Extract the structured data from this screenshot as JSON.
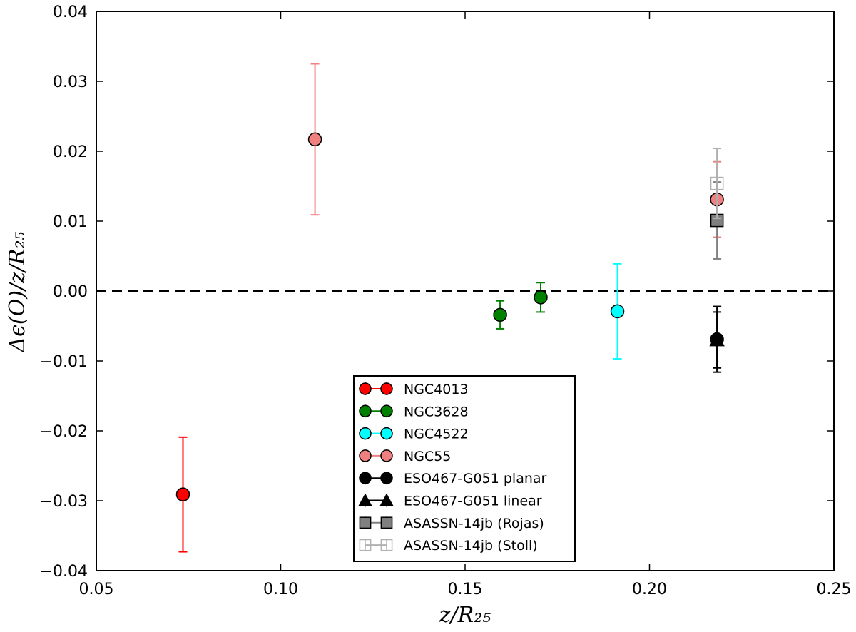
{
  "chart_data": {
    "type": "scatter",
    "title": "",
    "xlabel": "z/R₂₅",
    "ylabel": "Δϵ(O)/z/R₂₅",
    "xlim": [
      0.05,
      0.25
    ],
    "ylim": [
      -0.04,
      0.04
    ],
    "x_ticks": [
      {
        "value": 0.05,
        "label": "0.05"
      },
      {
        "value": 0.1,
        "label": "0.10"
      },
      {
        "value": 0.15,
        "label": "0.15"
      },
      {
        "value": 0.2,
        "label": "0.20"
      },
      {
        "value": 0.25,
        "label": "0.25"
      }
    ],
    "y_ticks": [
      {
        "value": 0.04,
        "label": "0.04"
      },
      {
        "value": 0.03,
        "label": "0.03"
      },
      {
        "value": 0.02,
        "label": "0.02"
      },
      {
        "value": 0.01,
        "label": "0.01"
      },
      {
        "value": 0.0,
        "label": "0.00"
      },
      {
        "value": -0.01,
        "label": "−0.01"
      },
      {
        "value": -0.02,
        "label": "−0.02"
      },
      {
        "value": -0.03,
        "label": "−0.03"
      },
      {
        "value": -0.04,
        "label": "−0.04"
      }
    ],
    "reference_line": {
      "y": 0.0,
      "style": "dashed",
      "color": "#000000"
    },
    "legend_position": "bottom-center",
    "series": [
      {
        "name": "NGC4013",
        "marker": "circle",
        "fill": "#ff0000",
        "edge": "#000000",
        "err_color": "#ff0000",
        "points": [
          {
            "x": 0.0735,
            "y": -0.0291,
            "err": 0.0082
          }
        ]
      },
      {
        "name": "NGC3628",
        "marker": "circle",
        "fill": "#008000",
        "edge": "#000000",
        "err_color": "#008000",
        "points": [
          {
            "x": 0.1595,
            "y": -0.0034,
            "err": 0.002
          },
          {
            "x": 0.1705,
            "y": -0.0009,
            "err": 0.0021
          }
        ]
      },
      {
        "name": "NGC4522",
        "marker": "circle",
        "fill": "#00ffff",
        "edge": "#000000",
        "err_color": "#00ffff",
        "points": [
          {
            "x": 0.1913,
            "y": -0.0029,
            "err": 0.0068
          }
        ]
      },
      {
        "name": "NGC55",
        "marker": "circle",
        "fill": "#f08080",
        "edge": "#000000",
        "err_color": "#f08080",
        "points": [
          {
            "x": 0.1093,
            "y": 0.0217,
            "err": 0.0108
          },
          {
            "x": 0.2183,
            "y": 0.0131,
            "err": 0.0054
          }
        ]
      },
      {
        "name": "ESO467-G051 planar",
        "marker": "circle",
        "fill": "#000000",
        "edge": "#000000",
        "err_color": "#000000",
        "points": [
          {
            "x": 0.2183,
            "y": -0.0069,
            "err": 0.0047
          }
        ]
      },
      {
        "name": "ESO467-G051 linear",
        "marker": "triangle",
        "fill": "#000000",
        "edge": "#000000",
        "err_color": "#000000",
        "points": [
          {
            "x": 0.2183,
            "y": -0.007,
            "err": 0.004
          }
        ]
      },
      {
        "name": "ASASSN-14jb (Rojas)",
        "marker": "square",
        "fill": "#808080",
        "edge": "#000000",
        "err_color": "#808080",
        "points": [
          {
            "x": 0.2183,
            "y": 0.0101,
            "err": 0.0055
          }
        ]
      },
      {
        "name": "ASASSN-14jb (Stoll)",
        "marker": "square",
        "fill": "none",
        "edge": "#b0b0b0",
        "err_color": "#b0b0b0",
        "points": [
          {
            "x": 0.2183,
            "y": 0.0154,
            "err": 0.005
          }
        ]
      }
    ]
  }
}
